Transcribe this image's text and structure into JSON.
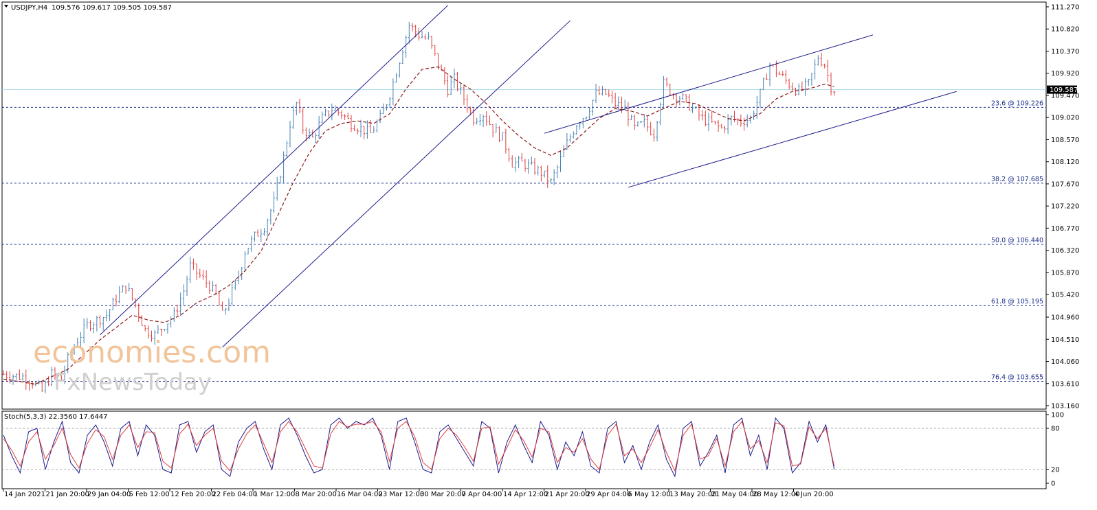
{
  "header": {
    "symbol": "USDJPY,H4",
    "ohlc": "109.576 109.617 109.505 109.587",
    "stoch_label": "Stoch(5,3,3) 22.3560 17.6447"
  },
  "watermark": {
    "line1": "economies.com",
    "line2": "FxNewsToday"
  },
  "colors": {
    "bull": "#4682b4",
    "bear": "#e0403f",
    "ma": "#8b1a1a",
    "channel": "#1c1c8c",
    "fib": "#1c2f8c",
    "current": "#a8d8ea",
    "stoch_main": "#1c1c8c",
    "stoch_signal": "#e0403f"
  },
  "chart_data": {
    "type": "candlestick",
    "ylim": [
      103.16,
      111.27
    ],
    "yticks": [
      "111.270",
      "110.820",
      "110.370",
      "109.920",
      "109.470",
      "109.020",
      "108.570",
      "108.120",
      "107.670",
      "107.220",
      "106.770",
      "106.320",
      "105.870",
      "105.420",
      "104.960",
      "104.510",
      "104.060",
      "103.610",
      "103.160"
    ],
    "current_price": "109.587",
    "xticks": [
      "14 Jan 2021",
      "21 Jan 20:00",
      "29 Jan 04:00",
      "5 Feb 12:00",
      "12 Feb 20:00",
      "22 Feb 04:00",
      "1 Mar 12:00",
      "8 Mar 20:00",
      "16 Mar 04:00",
      "23 Mar 12:00",
      "30 Mar 20:00",
      "7 Apr 04:00",
      "14 Apr 12:00",
      "21 Apr 20:00",
      "29 Apr 04:00",
      "6 May 12:00",
      "13 May 20:00",
      "21 May 04:00",
      "28 May 12:00",
      "4 Jun 20:00"
    ],
    "fib_levels": [
      {
        "label": "23.6 @ 109.226",
        "value": 109.226
      },
      {
        "label": "38.2 @ 107.685",
        "value": 107.685
      },
      {
        "label": "50.0 @ 106.440",
        "value": 106.44
      },
      {
        "label": "61.8 @ 105.195",
        "value": 105.195
      },
      {
        "label": "76.4 @ 103.655",
        "value": 103.655
      }
    ],
    "close_path": [
      [
        0,
        103.8
      ],
      [
        6,
        103.75
      ],
      [
        9,
        103.65
      ],
      [
        12,
        103.45
      ],
      [
        15,
        103.8
      ],
      [
        18,
        103.7
      ],
      [
        20,
        104.1
      ],
      [
        23,
        104.5
      ],
      [
        26,
        104.8
      ],
      [
        29,
        104.9
      ],
      [
        32,
        105.0
      ],
      [
        35,
        105.35
      ],
      [
        38,
        105.6
      ],
      [
        41,
        105.2
      ],
      [
        44,
        104.7
      ],
      [
        47,
        104.6
      ],
      [
        50,
        104.8
      ],
      [
        53,
        105.0
      ],
      [
        56,
        105.5
      ],
      [
        58,
        106.0
      ],
      [
        61,
        105.8
      ],
      [
        64,
        105.6
      ],
      [
        66,
        105.4
      ],
      [
        68,
        105.0
      ],
      [
        70,
        105.3
      ],
      [
        73,
        105.8
      ],
      [
        75,
        106.3
      ],
      [
        78,
        106.6
      ],
      [
        81,
        106.8
      ],
      [
        84,
        107.3
      ],
      [
        87,
        108.2
      ],
      [
        89,
        108.9
      ],
      [
        91,
        109.3
      ],
      [
        93,
        108.8
      ],
      [
        96,
        108.6
      ],
      [
        99,
        109.0
      ],
      [
        102,
        109.2
      ],
      [
        105,
        109.1
      ],
      [
        108,
        108.9
      ],
      [
        111,
        108.8
      ],
      [
        114,
        108.7
      ],
      [
        117,
        109.0
      ],
      [
        120,
        109.5
      ],
      [
        123,
        110.2
      ],
      [
        126,
        110.9
      ],
      [
        129,
        110.7
      ],
      [
        132,
        110.6
      ],
      [
        135,
        110.1
      ],
      [
        138,
        109.6
      ],
      [
        140,
        109.8
      ],
      [
        143,
        109.4
      ],
      [
        146,
        109.0
      ],
      [
        149,
        109.1
      ],
      [
        152,
        108.8
      ],
      [
        155,
        108.6
      ],
      [
        158,
        108.1
      ],
      [
        161,
        108.1
      ],
      [
        164,
        108.0
      ],
      [
        167,
        107.9
      ],
      [
        170,
        107.7
      ],
      [
        172,
        108.0
      ],
      [
        175,
        108.5
      ],
      [
        178,
        108.9
      ],
      [
        181,
        109.1
      ],
      [
        184,
        109.5
      ],
      [
        187,
        109.5
      ],
      [
        190,
        109.3
      ],
      [
        193,
        109.2
      ],
      [
        196,
        108.8
      ],
      [
        199,
        108.9
      ],
      [
        202,
        108.7
      ],
      [
        205,
        109.7
      ],
      [
        208,
        109.5
      ],
      [
        211,
        109.4
      ],
      [
        214,
        109.2
      ],
      [
        217,
        109.0
      ],
      [
        220,
        108.9
      ],
      [
        223,
        108.8
      ],
      [
        226,
        109.0
      ],
      [
        229,
        108.95
      ],
      [
        232,
        109.0
      ],
      [
        235,
        109.5
      ],
      [
        238,
        110.1
      ],
      [
        241,
        109.9
      ],
      [
        244,
        109.7
      ],
      [
        247,
        109.55
      ],
      [
        250,
        109.7
      ],
      [
        253,
        110.25
      ],
      [
        255,
        110.1
      ],
      [
        257,
        109.65
      ],
      [
        258,
        109.587
      ]
    ],
    "ma_path": [
      [
        0,
        103.7
      ],
      [
        10,
        103.6
      ],
      [
        20,
        103.9
      ],
      [
        30,
        104.5
      ],
      [
        40,
        105.0
      ],
      [
        45,
        104.9
      ],
      [
        50,
        104.85
      ],
      [
        55,
        105.0
      ],
      [
        60,
        105.25
      ],
      [
        65,
        105.4
      ],
      [
        70,
        105.6
      ],
      [
        75,
        105.9
      ],
      [
        80,
        106.3
      ],
      [
        85,
        107.0
      ],
      [
        90,
        107.7
      ],
      [
        95,
        108.3
      ],
      [
        100,
        108.75
      ],
      [
        105,
        108.9
      ],
      [
        110,
        108.95
      ],
      [
        115,
        108.9
      ],
      [
        120,
        109.1
      ],
      [
        125,
        109.6
      ],
      [
        130,
        110.0
      ],
      [
        135,
        110.05
      ],
      [
        140,
        109.8
      ],
      [
        145,
        109.6
      ],
      [
        150,
        109.3
      ],
      [
        155,
        108.95
      ],
      [
        160,
        108.65
      ],
      [
        165,
        108.4
      ],
      [
        170,
        108.25
      ],
      [
        175,
        108.4
      ],
      [
        180,
        108.7
      ],
      [
        185,
        109.0
      ],
      [
        190,
        109.2
      ],
      [
        195,
        109.15
      ],
      [
        200,
        109.05
      ],
      [
        205,
        109.2
      ],
      [
        210,
        109.35
      ],
      [
        215,
        109.3
      ],
      [
        220,
        109.15
      ],
      [
        225,
        109.0
      ],
      [
        230,
        108.95
      ],
      [
        235,
        109.1
      ],
      [
        240,
        109.4
      ],
      [
        245,
        109.55
      ],
      [
        250,
        109.6
      ],
      [
        255,
        109.7
      ],
      [
        258,
        109.65
      ]
    ],
    "channels": [
      {
        "i1": 30,
        "v1": 104.6,
        "i2": 138,
        "v2": 111.3
      },
      {
        "i1": 68,
        "v1": 104.35,
        "i2": 176,
        "v2": 110.99
      },
      {
        "i1": 168,
        "v1": 108.7,
        "i2": 270,
        "v2": 110.7
      },
      {
        "i1": 194,
        "v1": 107.6,
        "i2": 296,
        "v2": 109.55
      }
    ],
    "stochastic": {
      "ylim": [
        0,
        100
      ],
      "levels": [
        80,
        20
      ],
      "yticks": [
        "100",
        "80",
        "20",
        "0"
      ],
      "series": [
        {
          "name": "main",
          "values": [
            70,
            40,
            15,
            75,
            80,
            20,
            60,
            90,
            30,
            15,
            70,
            85,
            60,
            25,
            80,
            90,
            40,
            85,
            70,
            20,
            15,
            85,
            90,
            45,
            75,
            85,
            20,
            10,
            60,
            80,
            90,
            50,
            20,
            85,
            95,
            70,
            40,
            15,
            20,
            85,
            95,
            80,
            90,
            85,
            95,
            70,
            20,
            90,
            95,
            60,
            20,
            15,
            75,
            85,
            65,
            45,
            25,
            90,
            80,
            15,
            60,
            85,
            55,
            30,
            90,
            70,
            20,
            60,
            40,
            75,
            25,
            15,
            80,
            90,
            30,
            55,
            20,
            60,
            85,
            35,
            10,
            80,
            90,
            25,
            45,
            70,
            15,
            85,
            95,
            40,
            70,
            20,
            95,
            80,
            15,
            30,
            90,
            60,
            85,
            20
          ]
        },
        {
          "name": "signal",
          "values": [
            65,
            48,
            25,
            60,
            75,
            35,
            55,
            80,
            42,
            22,
            58,
            78,
            68,
            35,
            70,
            85,
            52,
            75,
            74,
            32,
            22,
            72,
            86,
            55,
            70,
            80,
            32,
            18,
            50,
            72,
            85,
            58,
            30,
            75,
            90,
            75,
            50,
            25,
            22,
            72,
            90,
            82,
            86,
            86,
            90,
            75,
            32,
            80,
            90,
            68,
            30,
            20,
            65,
            80,
            70,
            52,
            32,
            80,
            82,
            28,
            52,
            78,
            62,
            38,
            80,
            75,
            30,
            52,
            45,
            65,
            35,
            20,
            70,
            86,
            40,
            50,
            30,
            52,
            78,
            45,
            18,
            70,
            86,
            35,
            40,
            65,
            25,
            75,
            90,
            50,
            62,
            30,
            88,
            84,
            25,
            28,
            82,
            65,
            80,
            25
          ]
        }
      ]
    }
  }
}
